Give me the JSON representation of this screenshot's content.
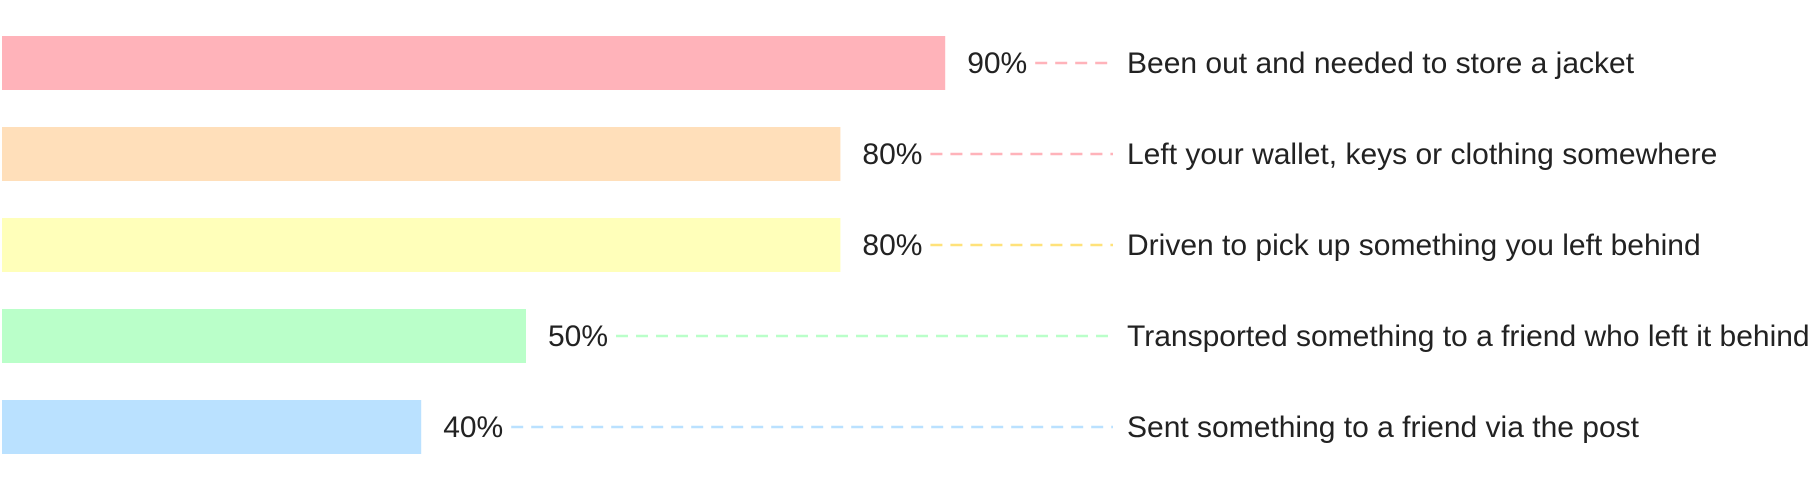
{
  "chart_data": {
    "type": "bar",
    "orientation": "horizontal",
    "categories": [
      "Been out and needed to store a jacket",
      "Left your wallet, keys or clothing somewhere",
      "Driven to pick up something you left behind",
      "Transported something to a friend who left it behind",
      "Sent something to a friend via the post"
    ],
    "values": [
      90,
      80,
      80,
      50,
      40
    ],
    "value_labels": [
      "90%",
      "80%",
      "80%",
      "50%",
      "40%"
    ],
    "unit": "%",
    "xlim": [
      0,
      100
    ],
    "colors": [
      "#ffb3ba",
      "#ffdfba",
      "#ffffba",
      "#baffc9",
      "#bae1ff"
    ],
    "connector_colors": [
      "#ffb3ba",
      "#ffb3ba",
      "#ffe27a",
      "#baffc9",
      "#bae1ff"
    ],
    "title": "",
    "xlabel": "",
    "ylabel": "",
    "grid": false,
    "legend": "none"
  }
}
